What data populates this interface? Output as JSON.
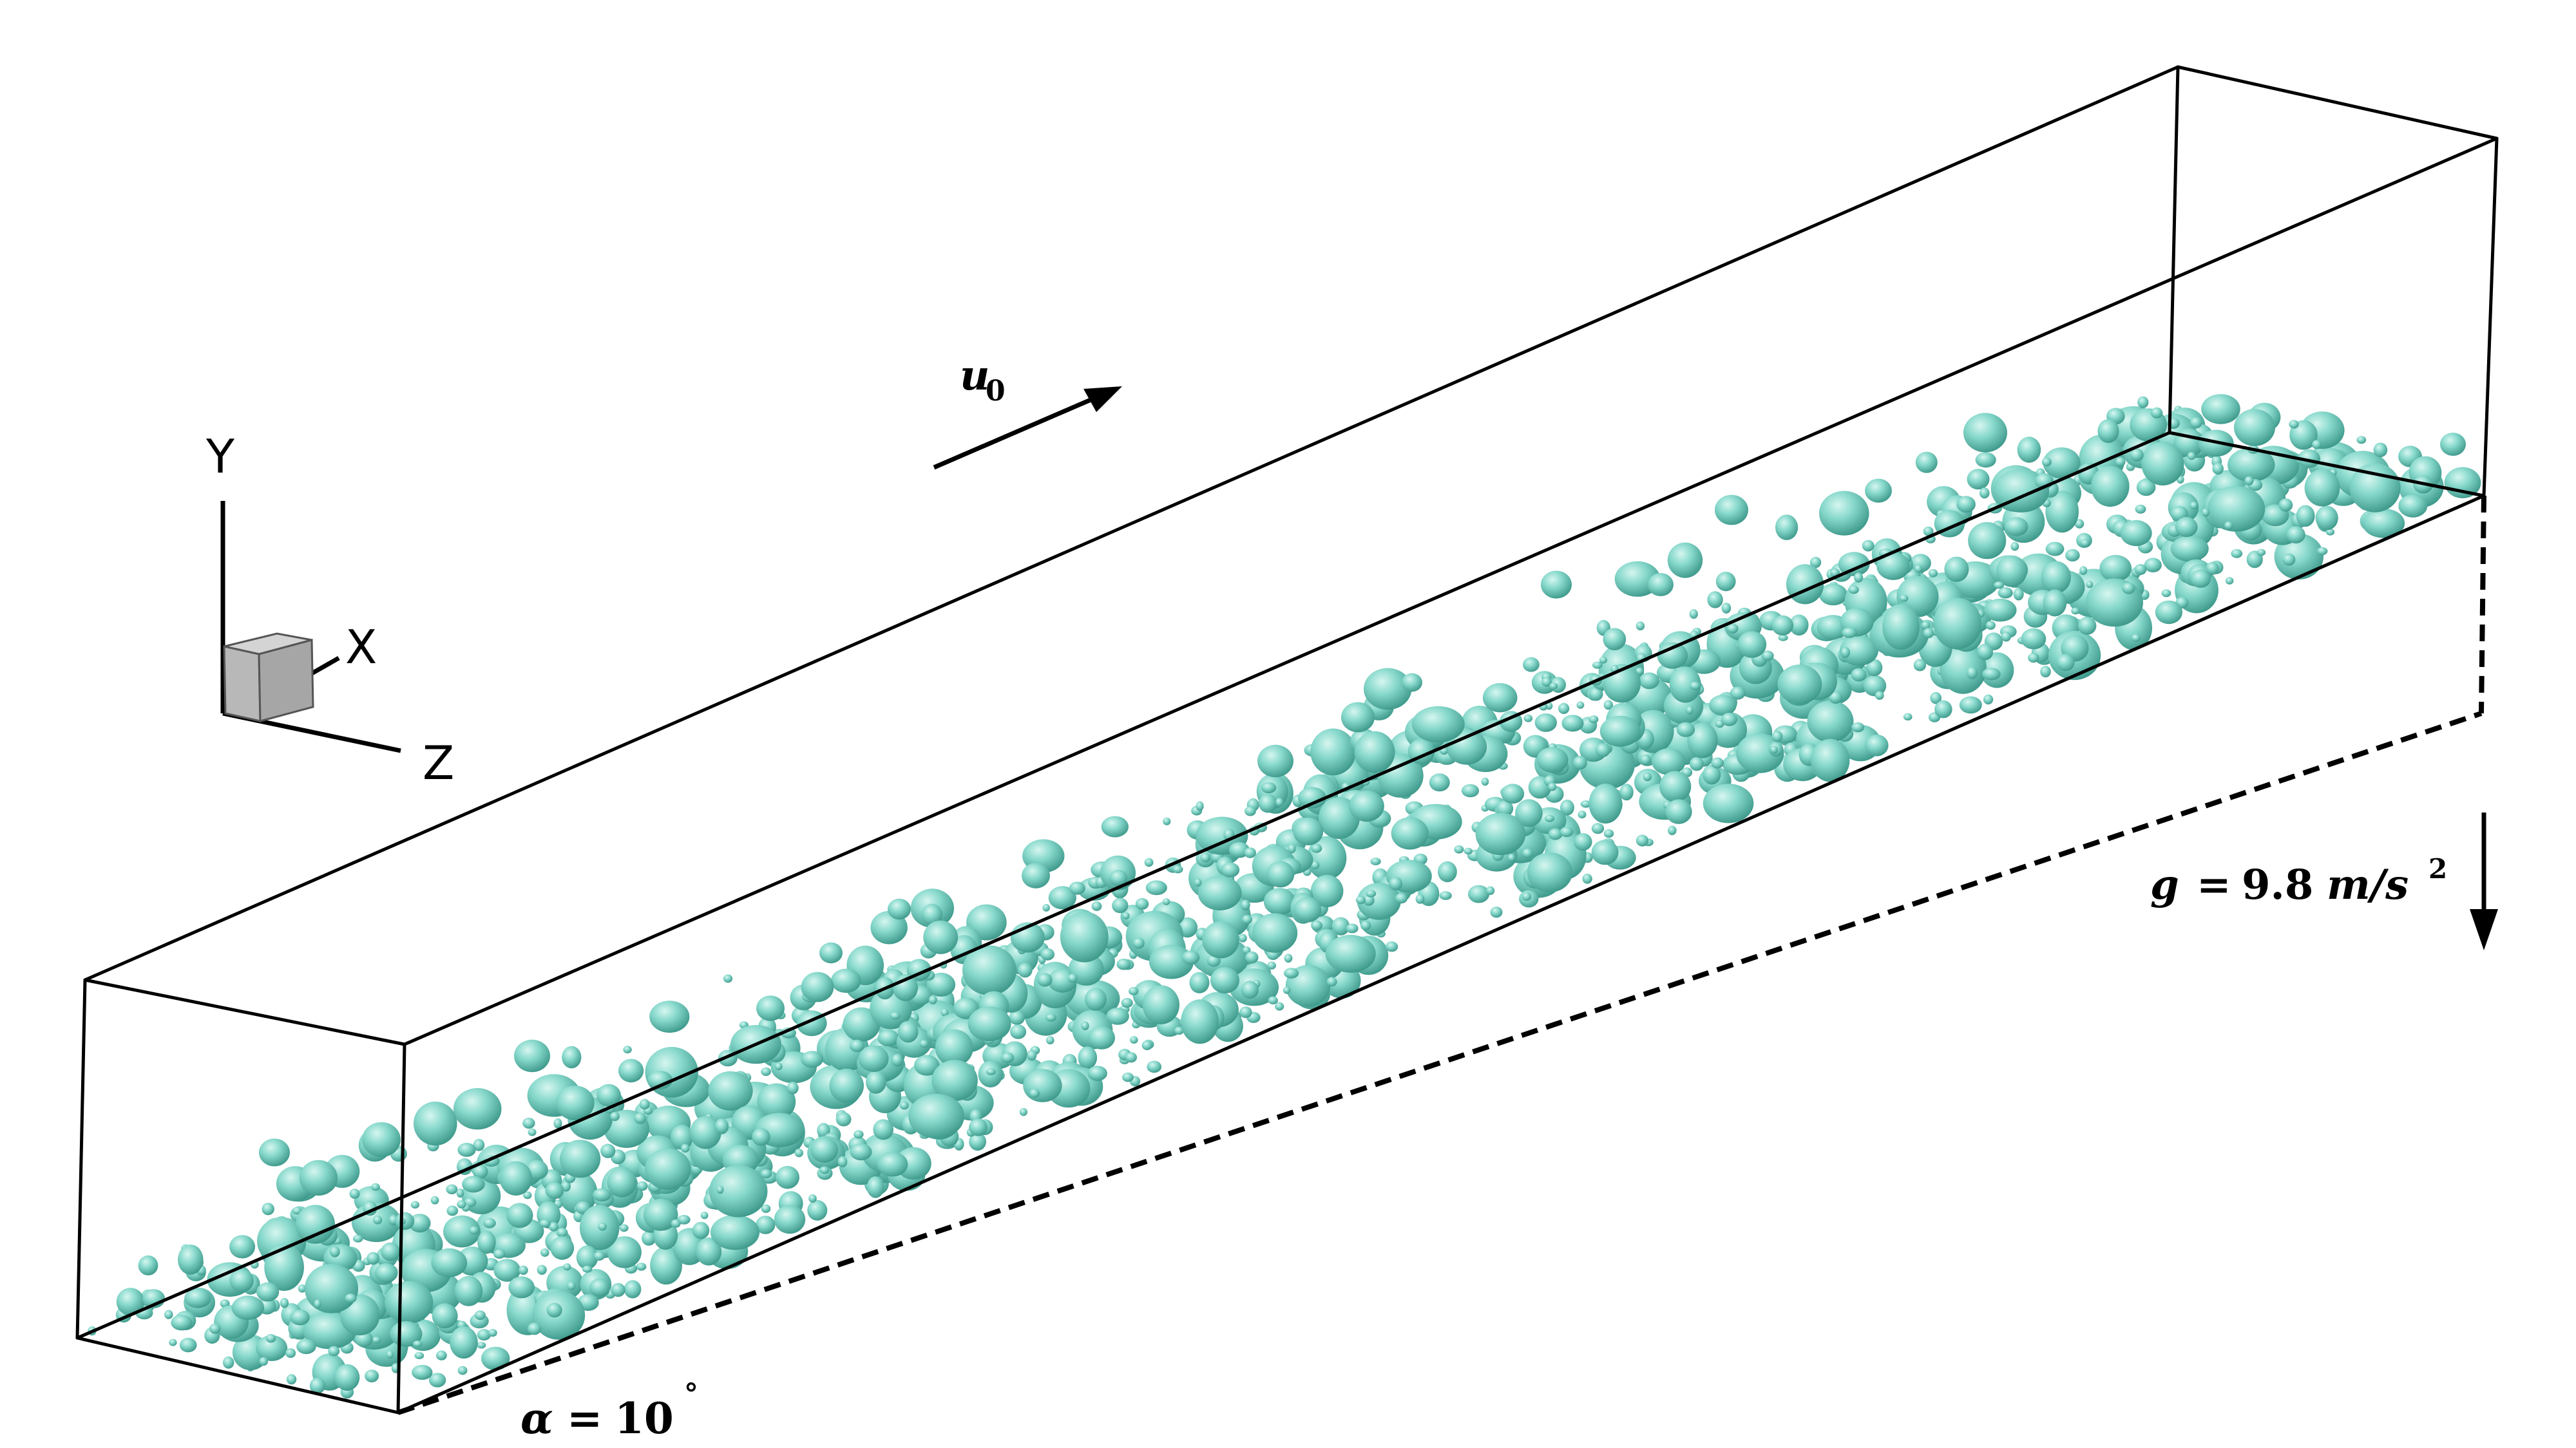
{
  "axes_triad": {
    "y_label": "Y",
    "x_label": "X",
    "z_label": "Z"
  },
  "flow_velocity": {
    "symbol": "u",
    "subscript": "0"
  },
  "inclination": {
    "symbol": "α",
    "equals": "=",
    "value": "10",
    "unit": "°"
  },
  "gravity": {
    "symbol": "g",
    "equals": "=",
    "value": "9.8",
    "unit_base": "m/s",
    "unit_exponent": "2"
  },
  "colors": {
    "bubble_fill": "#7fd3c6",
    "bubble_highlight": "#c9f1ea",
    "bubble_shadow": "#3e9a8c",
    "frame": "#000000",
    "cube_front": "#b8b8b8",
    "cube_side": "#8f8f8f",
    "cube_top": "#d4d4d4"
  }
}
